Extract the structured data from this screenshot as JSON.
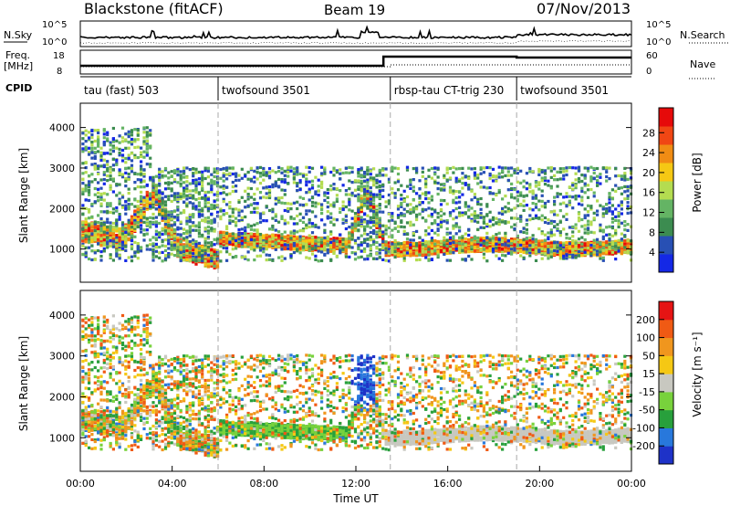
{
  "header": {
    "station": "Blackstone (fitACF)",
    "beam": "Beam 19",
    "date": "07/Nov/2013"
  },
  "left_labels": {
    "nsky": "N.Sky",
    "freq": "Freq.",
    "freq_unit": "[MHz]",
    "cpid": "CPID"
  },
  "right_labels": {
    "nsearch": "N.Search",
    "nave": "Nave"
  },
  "noise_axis": {
    "left_ticks": [
      "10^5",
      "10^0"
    ],
    "right_ticks": [
      "10^5",
      "10^0"
    ]
  },
  "freq_axis": {
    "left_ticks": [
      "18",
      "8"
    ],
    "right_ticks": [
      "60",
      "0"
    ]
  },
  "cpid_segments": [
    {
      "label": "tau (fast) 503",
      "start_hour": 0
    },
    {
      "label": "twofsound 3501",
      "start_hour": 6
    },
    {
      "label": "rbsp-tau CT-trig 230",
      "start_hour": 13.5
    },
    {
      "label": "twofsound 3501",
      "start_hour": 19
    }
  ],
  "chart_data": [
    {
      "type": "heatmap",
      "panel": "power",
      "xlabel": "Time UT",
      "ylabel": "Slant Range [km]",
      "x_ticks": [
        "00:00",
        "04:00",
        "08:00",
        "12:00",
        "16:00",
        "20:00",
        "00:00"
      ],
      "x_range_hours": [
        0,
        24
      ],
      "y_ticks": [
        1000,
        2000,
        3000,
        4000
      ],
      "ylim": [
        180,
        4600
      ],
      "colorbar": {
        "label": "Power [dB]",
        "ticks": [
          4,
          8,
          12,
          16,
          20,
          24,
          28
        ],
        "range": [
          0,
          33
        ],
        "colors": [
          "#1428e6",
          "#2850b4",
          "#3c8c50",
          "#64b464",
          "#b4dc50",
          "#f5c814",
          "#f08c14",
          "#f04614",
          "#e60a0a"
        ]
      }
    },
    {
      "type": "heatmap",
      "panel": "velocity",
      "xlabel": "Time UT",
      "ylabel": "Slant Range [km]",
      "x_ticks": [
        "00:00",
        "04:00",
        "08:00",
        "12:00",
        "16:00",
        "20:00",
        "00:00"
      ],
      "x_range_hours": [
        0,
        24
      ],
      "y_ticks": [
        1000,
        2000,
        3000,
        4000
      ],
      "ylim": [
        180,
        4600
      ],
      "colorbar": {
        "label": "Velocity [m s⁻¹]",
        "ticks": [
          200,
          100,
          50,
          15,
          -15,
          -50,
          -100,
          -200
        ],
        "colors": [
          "#1e32c8",
          "#2878dc",
          "#28a03c",
          "#78d23c",
          "#c8c8c0",
          "#f5c814",
          "#f0961e",
          "#f05a14",
          "#e61414"
        ]
      }
    }
  ]
}
